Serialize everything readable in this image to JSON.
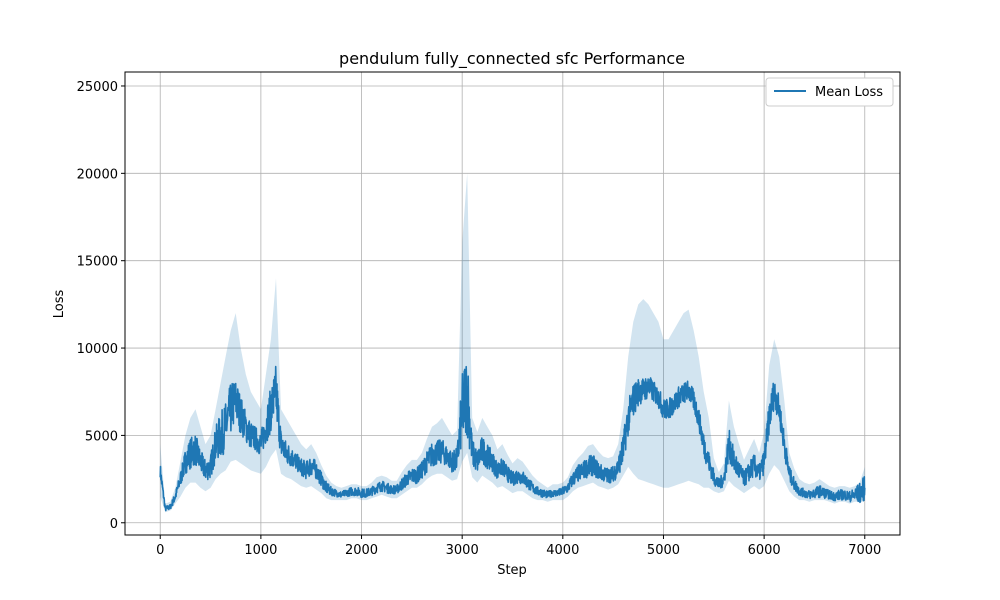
{
  "chart_data": {
    "type": "line",
    "title": "pendulum fully_connected sfc Performance",
    "xlabel": "Step",
    "ylabel": "Loss",
    "xlim": [
      -350,
      7350
    ],
    "ylim": [
      -700,
      25800
    ],
    "xticks": [
      0,
      1000,
      2000,
      3000,
      4000,
      5000,
      6000,
      7000
    ],
    "yticks": [
      0,
      5000,
      10000,
      15000,
      20000,
      25000
    ],
    "grid": true,
    "legend_position": "top-right",
    "line_color": "#1f77b4",
    "band_color": "#1f77b4",
    "series": [
      {
        "name": "Mean Loss",
        "x": [
          0,
          50,
          100,
          150,
          200,
          250,
          300,
          350,
          400,
          450,
          500,
          550,
          600,
          650,
          700,
          750,
          800,
          850,
          900,
          950,
          1000,
          1050,
          1100,
          1150,
          1200,
          1250,
          1300,
          1350,
          1400,
          1450,
          1500,
          1550,
          1600,
          1650,
          1700,
          1750,
          1800,
          1850,
          1900,
          1950,
          2000,
          2050,
          2100,
          2150,
          2200,
          2250,
          2300,
          2350,
          2400,
          2450,
          2500,
          2550,
          2600,
          2650,
          2700,
          2750,
          2800,
          2850,
          2900,
          2950,
          3000,
          3050,
          3100,
          3150,
          3200,
          3250,
          3300,
          3350,
          3400,
          3450,
          3500,
          3550,
          3600,
          3650,
          3700,
          3750,
          3800,
          3850,
          3900,
          3950,
          4000,
          4050,
          4100,
          4150,
          4200,
          4250,
          4300,
          4350,
          4400,
          4450,
          4500,
          4550,
          4600,
          4650,
          4700,
          4750,
          4800,
          4850,
          4900,
          4950,
          5000,
          5050,
          5100,
          5150,
          5200,
          5250,
          5300,
          5350,
          5400,
          5450,
          5500,
          5550,
          5600,
          5650,
          5700,
          5750,
          5800,
          5850,
          5900,
          5950,
          6000,
          6050,
          6100,
          6150,
          6200,
          6250,
          6300,
          6350,
          6400,
          6450,
          6500,
          6550,
          6600,
          6650,
          6700,
          6750,
          6800,
          6850,
          6900,
          6950,
          7000
        ],
        "values": [
          3000,
          800,
          900,
          1500,
          2500,
          3500,
          4000,
          4200,
          3500,
          3000,
          3200,
          4500,
          5000,
          5500,
          6500,
          7000,
          6200,
          5500,
          5000,
          4800,
          4500,
          5500,
          6500,
          7500,
          4500,
          4000,
          3800,
          3500,
          3200,
          3000,
          3300,
          3000,
          2500,
          2000,
          1800,
          1700,
          1600,
          1700,
          1800,
          1800,
          1700,
          1700,
          1800,
          2000,
          2100,
          2000,
          1900,
          1900,
          2200,
          2500,
          2700,
          2700,
          3000,
          3500,
          3900,
          4000,
          4100,
          3800,
          3500,
          3600,
          6500,
          7500,
          4000,
          3500,
          4200,
          3800,
          3500,
          3000,
          3200,
          2800,
          2500,
          2700,
          2600,
          2300,
          2000,
          1800,
          1700,
          1600,
          1700,
          1700,
          1800,
          2000,
          2500,
          2800,
          3000,
          3200,
          3300,
          3000,
          2800,
          2700,
          2800,
          3200,
          4200,
          6000,
          7000,
          7500,
          7600,
          7800,
          7500,
          7200,
          6500,
          6500,
          6800,
          7200,
          7400,
          7600,
          7000,
          6000,
          4500,
          3500,
          2600,
          2200,
          2500,
          4500,
          3500,
          3000,
          2500,
          2900,
          3300,
          2800,
          3500,
          6000,
          7500,
          6500,
          4500,
          2800,
          2200,
          1800,
          1700,
          1600,
          1700,
          1800,
          1700,
          1600,
          1500,
          1600,
          1600,
          1500,
          1600,
          1700,
          2000
        ],
        "noise": [
          400,
          150,
          150,
          250,
          400,
          700,
          900,
          900,
          700,
          600,
          700,
          1000,
          1300,
          1400,
          1500,
          1300,
          1100,
          900,
          800,
          700,
          700,
          1000,
          1300,
          1600,
          800,
          700,
          600,
          500,
          500,
          500,
          600,
          500,
          400,
          350,
          250,
          200,
          200,
          200,
          250,
          250,
          250,
          250,
          250,
          300,
          300,
          300,
          250,
          250,
          350,
          400,
          450,
          450,
          500,
          600,
          700,
          700,
          700,
          600,
          600,
          700,
          2000,
          2500,
          800,
          700,
          800,
          700,
          600,
          500,
          500,
          450,
          400,
          450,
          400,
          350,
          300,
          250,
          250,
          200,
          200,
          200,
          250,
          300,
          400,
          500,
          500,
          600,
          600,
          500,
          450,
          450,
          450,
          600,
          900,
          1000,
          1000,
          800,
          700,
          700,
          600,
          600,
          600,
          600,
          600,
          600,
          600,
          600,
          600,
          600,
          700,
          600,
          450,
          350,
          400,
          900,
          700,
          600,
          450,
          550,
          650,
          500,
          700,
          900,
          900,
          700,
          700,
          450,
          350,
          250,
          250,
          250,
          300,
          350,
          300,
          250,
          250,
          300,
          300,
          300,
          400,
          600,
          700
        ],
        "lower": [
          1500,
          600,
          700,
          1100,
          1500,
          2000,
          2300,
          2300,
          2000,
          1800,
          2000,
          2500,
          2800,
          3000,
          3500,
          3600,
          3400,
          3200,
          3000,
          2900,
          2800,
          3200,
          3800,
          4200,
          2800,
          2600,
          2500,
          2300,
          2100,
          2000,
          2100,
          1900,
          1700,
          1400,
          1300,
          1300,
          1300,
          1300,
          1400,
          1400,
          1300,
          1300,
          1400,
          1500,
          1600,
          1500,
          1400,
          1400,
          1600,
          1800,
          2000,
          2000,
          2200,
          2500,
          2700,
          2800,
          2800,
          2600,
          2400,
          2500,
          3500,
          4000,
          2600,
          2300,
          2700,
          2500,
          2300,
          2000,
          2100,
          1900,
          1700,
          1800,
          1800,
          1600,
          1400,
          1300,
          1300,
          1200,
          1300,
          1300,
          1300,
          1500,
          1800,
          2000,
          2100,
          2200,
          2300,
          2100,
          2000,
          1900,
          2000,
          2200,
          2700,
          3200,
          2800,
          2500,
          2400,
          2300,
          2200,
          2100,
          2000,
          2000,
          2100,
          2200,
          2300,
          2400,
          2300,
          2200,
          2000,
          2000,
          1800,
          1700,
          1800,
          2400,
          2100,
          1900,
          1700,
          1900,
          2100,
          1900,
          2100,
          2800,
          3300,
          3000,
          2400,
          1800,
          1500,
          1300,
          1300,
          1200,
          1300,
          1300,
          1300,
          1200,
          1100,
          1200,
          1200,
          1100,
          1200,
          1200,
          1400
        ],
        "upper": [
          4500,
          1100,
          1200,
          2000,
          3500,
          5000,
          6000,
          6500,
          5500,
          4500,
          5000,
          6500,
          8000,
          9500,
          11000,
          12000,
          10000,
          8500,
          7500,
          7000,
          6500,
          8500,
          10500,
          14000,
          6500,
          6000,
          5500,
          5000,
          4500,
          4200,
          4500,
          4000,
          3300,
          2700,
          2300,
          2100,
          2000,
          2100,
          2200,
          2200,
          2100,
          2100,
          2300,
          2600,
          2700,
          2600,
          2400,
          2400,
          2900,
          3300,
          3600,
          3600,
          4000,
          4800,
          5500,
          5700,
          6000,
          5500,
          5000,
          5300,
          16000,
          20000,
          6000,
          5200,
          6000,
          5500,
          5000,
          4200,
          4500,
          3900,
          3400,
          3700,
          3500,
          3100,
          2700,
          2400,
          2200,
          2000,
          2200,
          2200,
          2300,
          2600,
          3300,
          3700,
          4000,
          4400,
          4500,
          4100,
          3800,
          3700,
          3800,
          4500,
          6500,
          9500,
          11500,
          12500,
          12800,
          12500,
          12000,
          11500,
          10500,
          10500,
          11000,
          11500,
          12000,
          12200,
          11000,
          9500,
          7500,
          6000,
          3700,
          2900,
          3400,
          7000,
          5500,
          4500,
          3600,
          4200,
          4800,
          4000,
          5200,
          9000,
          10500,
          9500,
          7000,
          4000,
          3100,
          2500,
          2300,
          2200,
          2300,
          2500,
          2300,
          2100,
          2000,
          2100,
          2100,
          2000,
          2100,
          2300,
          3200
        ]
      }
    ]
  }
}
